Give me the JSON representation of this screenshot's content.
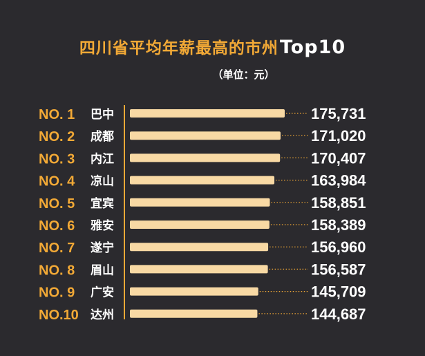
{
  "header": {
    "title_prefix": "四川省平均年薪最高的市州",
    "title_suffix": "Top10",
    "unit": "（单位：元）"
  },
  "colors": {
    "background": "#2b2a2e",
    "accent": "#f2a936",
    "bar": "#f8d9a4",
    "text": "#ffffff",
    "leader": "#f2a936"
  },
  "chart_data": {
    "type": "bar",
    "orientation": "horizontal",
    "title": "四川省平均年薪最高的市州Top10",
    "subtitle": "（单位：元）",
    "ranks": [
      "NO. 1",
      "NO. 2",
      "NO. 3",
      "NO. 4",
      "NO. 5",
      "NO. 6",
      "NO. 7",
      "NO. 8",
      "NO. 9",
      "NO.10"
    ],
    "categories": [
      "巴中",
      "成都",
      "内江",
      "凉山",
      "宜宾",
      "雅安",
      "遂宁",
      "眉山",
      "广安",
      "达州"
    ],
    "values": [
      175731,
      171020,
      170407,
      163984,
      158851,
      158389,
      156960,
      156587,
      145709,
      144687
    ],
    "value_labels": [
      "175,731",
      "171,020",
      "170,407",
      "163,984",
      "158,851",
      "158,389",
      "156,960",
      "156,587",
      "145,709",
      "144,687"
    ],
    "legend": "none",
    "grid": false
  }
}
